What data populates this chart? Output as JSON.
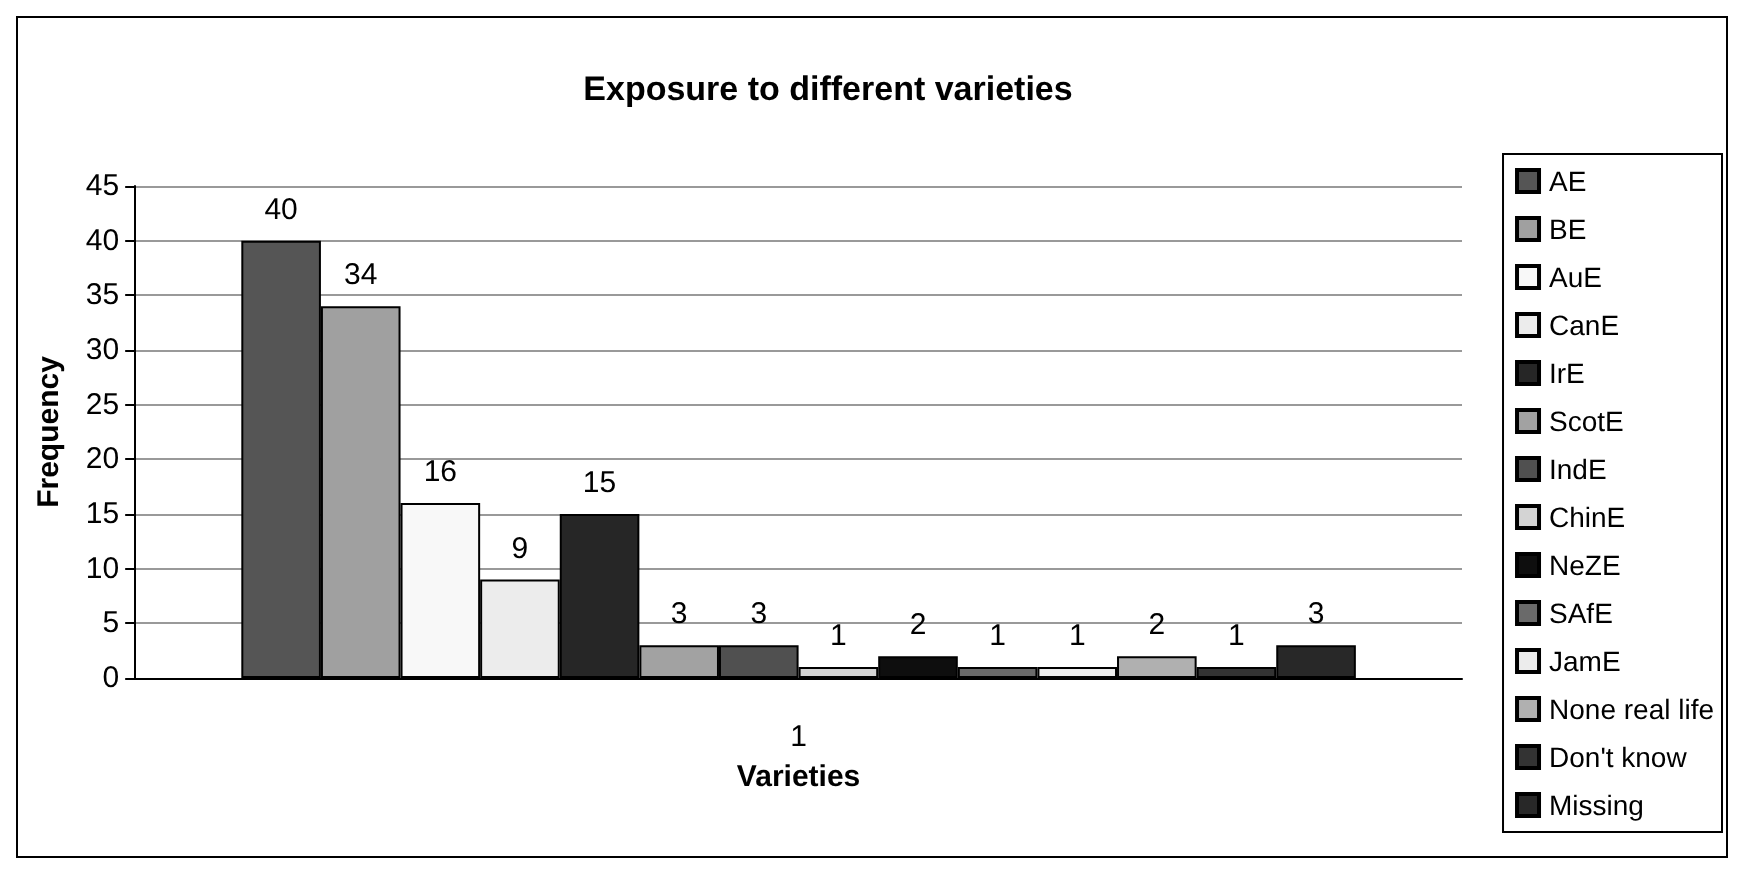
{
  "chart_data": {
    "type": "bar",
    "title": "Exposure to different varieties",
    "xlabel": "Varieties",
    "ylabel": "Frequency",
    "categories": [
      "1"
    ],
    "series": [
      {
        "name": "AE",
        "color": "#555555",
        "values": [
          40
        ]
      },
      {
        "name": "BE",
        "color": "#a0a0a0",
        "values": [
          34
        ]
      },
      {
        "name": "AuE",
        "color": "#f8f8f8",
        "values": [
          16
        ]
      },
      {
        "name": "CanE",
        "color": "#ececec",
        "values": [
          9
        ]
      },
      {
        "name": "IrE",
        "color": "#262626",
        "values": [
          15
        ]
      },
      {
        "name": "ScotE",
        "color": "#a2a2a2",
        "values": [
          3
        ]
      },
      {
        "name": "IndE",
        "color": "#505050",
        "values": [
          3
        ]
      },
      {
        "name": "ChinE",
        "color": "#d4d4d4",
        "values": [
          1
        ]
      },
      {
        "name": "NeZE",
        "color": "#0e0e0e",
        "values": [
          2
        ]
      },
      {
        "name": "SAfE",
        "color": "#6a6a6a",
        "values": [
          1
        ]
      },
      {
        "name": "JamE",
        "color": "#ececec",
        "values": [
          1
        ]
      },
      {
        "name": "None real life",
        "color": "#b0b0b0",
        "values": [
          2
        ]
      },
      {
        "name": "Don't know",
        "color": "#333333",
        "values": [
          1
        ]
      },
      {
        "name": "Missing",
        "color": "#282828",
        "values": [
          3
        ]
      }
    ],
    "ylim": [
      0,
      45
    ],
    "yticks": [
      0,
      5,
      10,
      15,
      20,
      25,
      30,
      35,
      40,
      45
    ],
    "grid": "y",
    "legend": "right",
    "data_labels": true
  }
}
